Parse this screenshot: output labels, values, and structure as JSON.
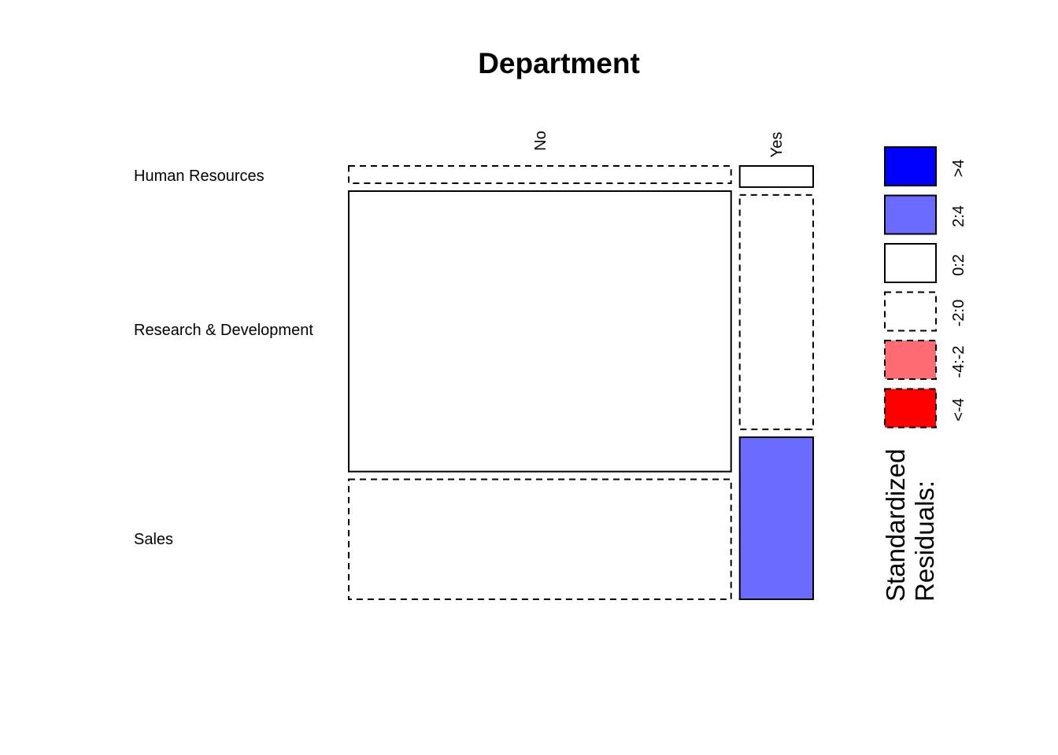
{
  "chart_data": {
    "type": "mosaic",
    "title": "Department",
    "row_variable": "Department",
    "column_variable": "",
    "rows": [
      "Human Resources",
      "Research & Development",
      "Sales"
    ],
    "columns": [
      "No",
      "Yes"
    ],
    "counts": [
      [
        51,
        12
      ],
      [
        828,
        133
      ],
      [
        354,
        92
      ]
    ],
    "residual_class": [
      [
        "-2:0",
        "0:2"
      ],
      [
        "0:2",
        "-2:0"
      ],
      [
        "-2:0",
        "2:4"
      ]
    ],
    "legend": {
      "title_line1": "Standardized",
      "title_line2": "Residuals:",
      "entries": [
        {
          "label": ">4",
          "color": "#0000ff",
          "dashed": false
        },
        {
          "label": "2:4",
          "color": "#6b6bff",
          "dashed": false
        },
        {
          "label": "0:2",
          "color": "#ffffff",
          "dashed": false
        },
        {
          "label": "-2:0",
          "color": "#ffffff",
          "dashed": true
        },
        {
          "label": "-4:-2",
          "color": "#ff6b73",
          "dashed": true
        },
        {
          "label": "<-4",
          "color": "#ff0000",
          "dashed": true
        }
      ]
    }
  }
}
